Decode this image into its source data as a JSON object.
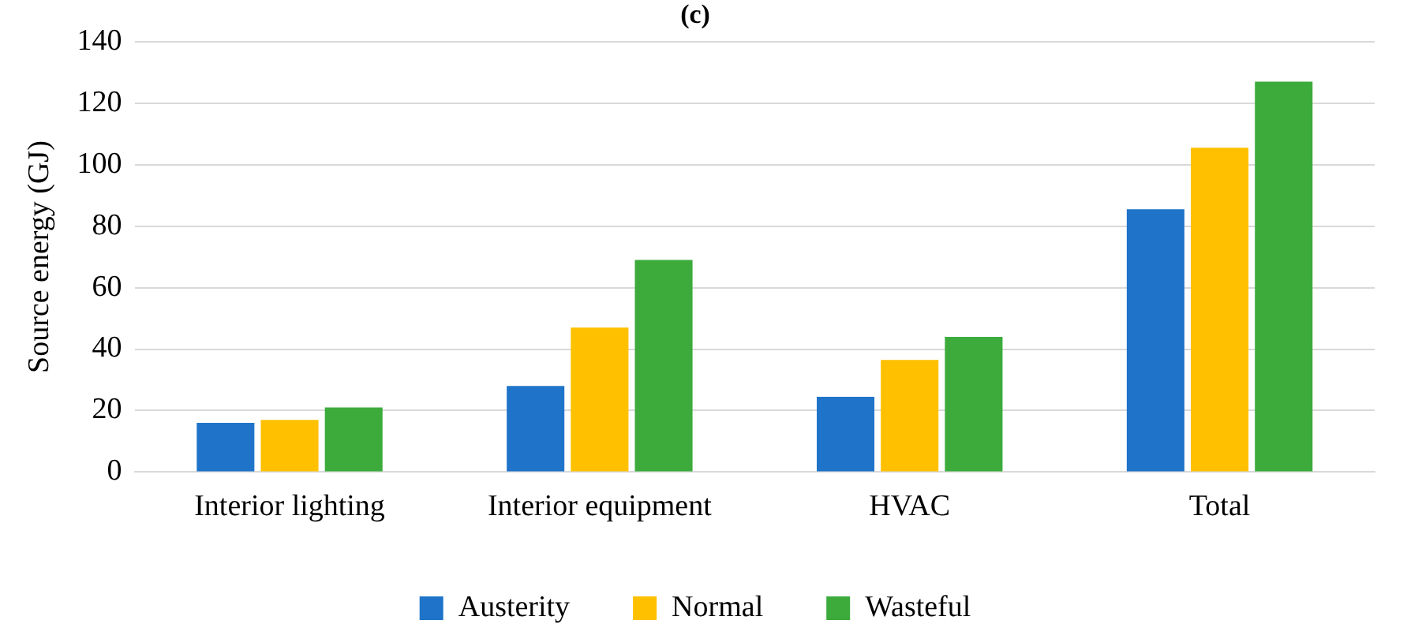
{
  "chart_data": {
    "type": "bar",
    "title": "(c)",
    "ylabel": "Source energy (GJ)",
    "categories": [
      "Interior lighting",
      "Interior equipment",
      "HVAC",
      "Total"
    ],
    "series": [
      {
        "name": "Austerity",
        "color": "#1f74c9",
        "values": [
          16,
          28,
          24.5,
          85.5
        ]
      },
      {
        "name": "Normal",
        "color": "#ffc000",
        "values": [
          17,
          47,
          36.5,
          105.5
        ]
      },
      {
        "name": "Wasteful",
        "color": "#3cab3c",
        "values": [
          21,
          69,
          44,
          127
        ]
      }
    ],
    "ylim": [
      0,
      140
    ],
    "yticks": [
      0,
      20,
      40,
      60,
      80,
      100,
      120,
      140
    ],
    "grid": "y",
    "legend": "bottom"
  }
}
